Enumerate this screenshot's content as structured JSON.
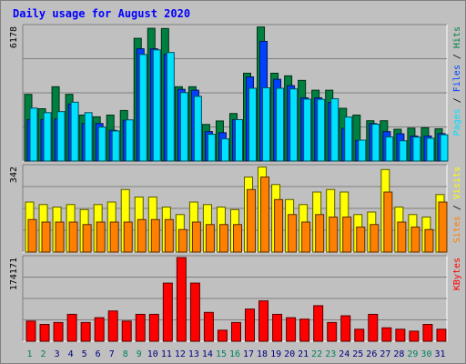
{
  "chart_data": {
    "type": "bar",
    "title": "Daily usage for August 2020",
    "days": [
      "1",
      "2",
      "3",
      "4",
      "5",
      "6",
      "7",
      "8",
      "9",
      "10",
      "11",
      "12",
      "13",
      "14",
      "15",
      "16",
      "17",
      "18",
      "19",
      "20",
      "21",
      "22",
      "23",
      "24",
      "25",
      "26",
      "27",
      "28",
      "29",
      "30",
      "31"
    ],
    "weekend_days": [
      "1",
      "2",
      "8",
      "9",
      "15",
      "16",
      "22",
      "23",
      "29",
      "30"
    ],
    "panels": [
      {
        "name": "hits-files-pages",
        "max_label": "6178",
        "ymax": 6178,
        "right_labels": [
          "Pages",
          "Files",
          "Hits"
        ],
        "series": [
          {
            "name": "Hits",
            "values": [
              3060,
              2400,
              3410,
              3060,
              2110,
              2030,
              2110,
              2320,
              5630,
              6090,
              6080,
              3410,
              3410,
              1680,
              1840,
              2180,
              4030,
              6150,
              4030,
              3910,
              3700,
              3250,
              3250,
              2420,
              2110,
              1850,
              1850,
              1460,
              1510,
              1530,
              1480
            ]
          },
          {
            "name": "Files",
            "values": [
              1900,
              1900,
              1930,
              2610,
              1720,
              1720,
              1410,
              1870,
              5150,
              5150,
              4900,
              3290,
              3250,
              1350,
              1300,
              1900,
              3860,
              5490,
              3750,
              3460,
              2900,
              2900,
              2690,
              1500,
              950,
              1720,
              1350,
              1250,
              1150,
              1150,
              1260
            ]
          },
          {
            "name": "Pages",
            "values": [
              2430,
              2220,
              2270,
              2700,
              2220,
              1560,
              1380,
              1890,
              4890,
              5100,
              4980,
              3140,
              2970,
              1230,
              1020,
              1900,
              3340,
              3360,
              3340,
              3310,
              2840,
              2830,
              2860,
              2020,
              960,
              1690,
              1110,
              930,
              1100,
              1050,
              1210
            ]
          }
        ]
      },
      {
        "name": "visits-sites",
        "max_label": "342",
        "ymax": 342,
        "right_labels": [
          "Sites",
          "Visits"
        ],
        "series": [
          {
            "name": "Visits",
            "values": [
              200,
              190,
              180,
              190,
              170,
              190,
              200,
              250,
              220,
              220,
              180,
              150,
              200,
              190,
              180,
              170,
              300,
              340,
              270,
              210,
              190,
              240,
              250,
              240,
              150,
              160,
              330,
              180,
              150,
              140,
              230
            ]
          },
          {
            "name": "Sites",
            "values": [
              130,
              120,
              120,
              120,
              110,
              120,
              120,
              120,
              130,
              130,
              130,
              90,
              120,
              110,
              110,
              110,
              250,
              300,
              210,
              150,
              120,
              150,
              140,
              140,
              100,
              110,
              240,
              120,
              100,
              90,
              200
            ]
          }
        ]
      },
      {
        "name": "kbytes",
        "max_label": "174171",
        "ymax": 174171,
        "right_labels": [
          "KBytes"
        ],
        "series": [
          {
            "name": "KBytes",
            "values": [
              42000,
              35000,
              39000,
              56000,
              39000,
              49000,
              63000,
              42000,
              56000,
              56000,
              121000,
              174171,
              121000,
              60000,
              23000,
              39000,
              67000,
              84000,
              56000,
              49000,
              46000,
              74000,
              39000,
              53000,
              25000,
              56000,
              28000,
              25000,
              21000,
              35000,
              25000
            ]
          }
        ]
      }
    ]
  },
  "colors": {
    "background": "#c0c0c0",
    "title": "#0000ff",
    "hits": "#008040",
    "files": "#0040ff",
    "pages": "#00e0ff",
    "visits": "#ffff00",
    "sites": "#ff8000",
    "kbytes": "#ff0000",
    "weekday_label": "#000080",
    "weekend_label": "#00805f"
  }
}
